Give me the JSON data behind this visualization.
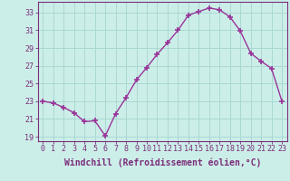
{
  "x": [
    0,
    1,
    2,
    3,
    4,
    5,
    6,
    7,
    8,
    9,
    10,
    11,
    12,
    13,
    14,
    15,
    16,
    17,
    18,
    19,
    20,
    21,
    22,
    23
  ],
  "y": [
    23.0,
    22.8,
    22.3,
    21.7,
    20.7,
    20.8,
    19.1,
    21.6,
    23.4,
    25.4,
    26.8,
    28.3,
    29.6,
    31.0,
    32.7,
    33.1,
    33.5,
    33.3,
    32.5,
    30.9,
    28.4,
    27.5,
    26.7,
    23.0
  ],
  "line_color": "#993399",
  "marker": "+",
  "marker_size": 4,
  "bg_color": "#cceee8",
  "grid_color": "#aad8d4",
  "xlabel": "Windchill (Refroidissement éolien,°C)",
  "xlim": [
    -0.5,
    23.5
  ],
  "ylim": [
    18.5,
    34.2
  ],
  "yticks": [
    19,
    21,
    23,
    25,
    27,
    29,
    31,
    33
  ],
  "xtick_labels": [
    "0",
    "1",
    "2",
    "3",
    "4",
    "5",
    "6",
    "7",
    "8",
    "9",
    "10",
    "11",
    "12",
    "13",
    "14",
    "15",
    "16",
    "17",
    "18",
    "19",
    "20",
    "21",
    "22",
    "23"
  ],
  "tick_color": "#7a2d7a",
  "label_color": "#7a2d7a",
  "spine_color": "#7a2d7a",
  "xlabel_fontsize": 7,
  "tick_fontsize": 6,
  "linewidth": 1.0,
  "marker_color": "#993399"
}
